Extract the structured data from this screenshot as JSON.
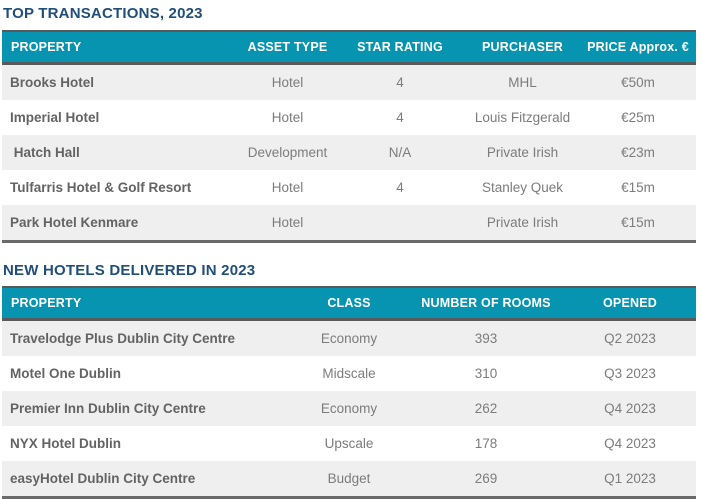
{
  "colors": {
    "header_bg": "#0794B0",
    "title_text": "#1F4E79",
    "row_stripe": "#EFEFEF",
    "border_dark": "#595959",
    "property_text": "#636363",
    "cell_text": "#7C7C7C",
    "header_text": "#FFFFFF"
  },
  "tables": [
    {
      "title": "TOP TRANSACTIONS, 2023",
      "columns": [
        "PROPERTY",
        "ASSET TYPE",
        "STAR RATING",
        "PURCHASER",
        "PRICE Approx. €"
      ],
      "rows": [
        [
          "Brooks Hotel",
          "Hotel",
          "4",
          "MHL",
          "€50m"
        ],
        [
          "Imperial Hotel",
          "Hotel",
          "4",
          "Louis Fitzgerald",
          "€25m"
        ],
        [
          " Hatch Hall",
          "Development",
          "N/A",
          "Private Irish",
          "€23m"
        ],
        [
          "Tulfarris Hotel & Golf Resort",
          "Hotel",
          "4",
          "Stanley Quek",
          "€15m"
        ],
        [
          "Park Hotel Kenmare",
          "Hotel",
          "",
          "Private Irish",
          "€15m"
        ]
      ]
    },
    {
      "title": "NEW HOTELS DELIVERED IN 2023",
      "columns": [
        "PROPERTY",
        "CLASS",
        "NUMBER OF ROOMS",
        "OPENED"
      ],
      "rows": [
        [
          "Travelodge Plus Dublin City Centre",
          "Economy",
          "393",
          "Q2 2023"
        ],
        [
          "Motel One Dublin",
          "Midscale",
          "310",
          "Q3 2023"
        ],
        [
          "Premier Inn Dublin City Centre",
          "Economy",
          "262",
          "Q4 2023"
        ],
        [
          "NYX Hotel Dublin",
          "Upscale",
          "178",
          "Q4 2023"
        ],
        [
          "easyHotel Dublin City Centre",
          "Budget",
          "269",
          "Q1 2023"
        ]
      ]
    }
  ]
}
